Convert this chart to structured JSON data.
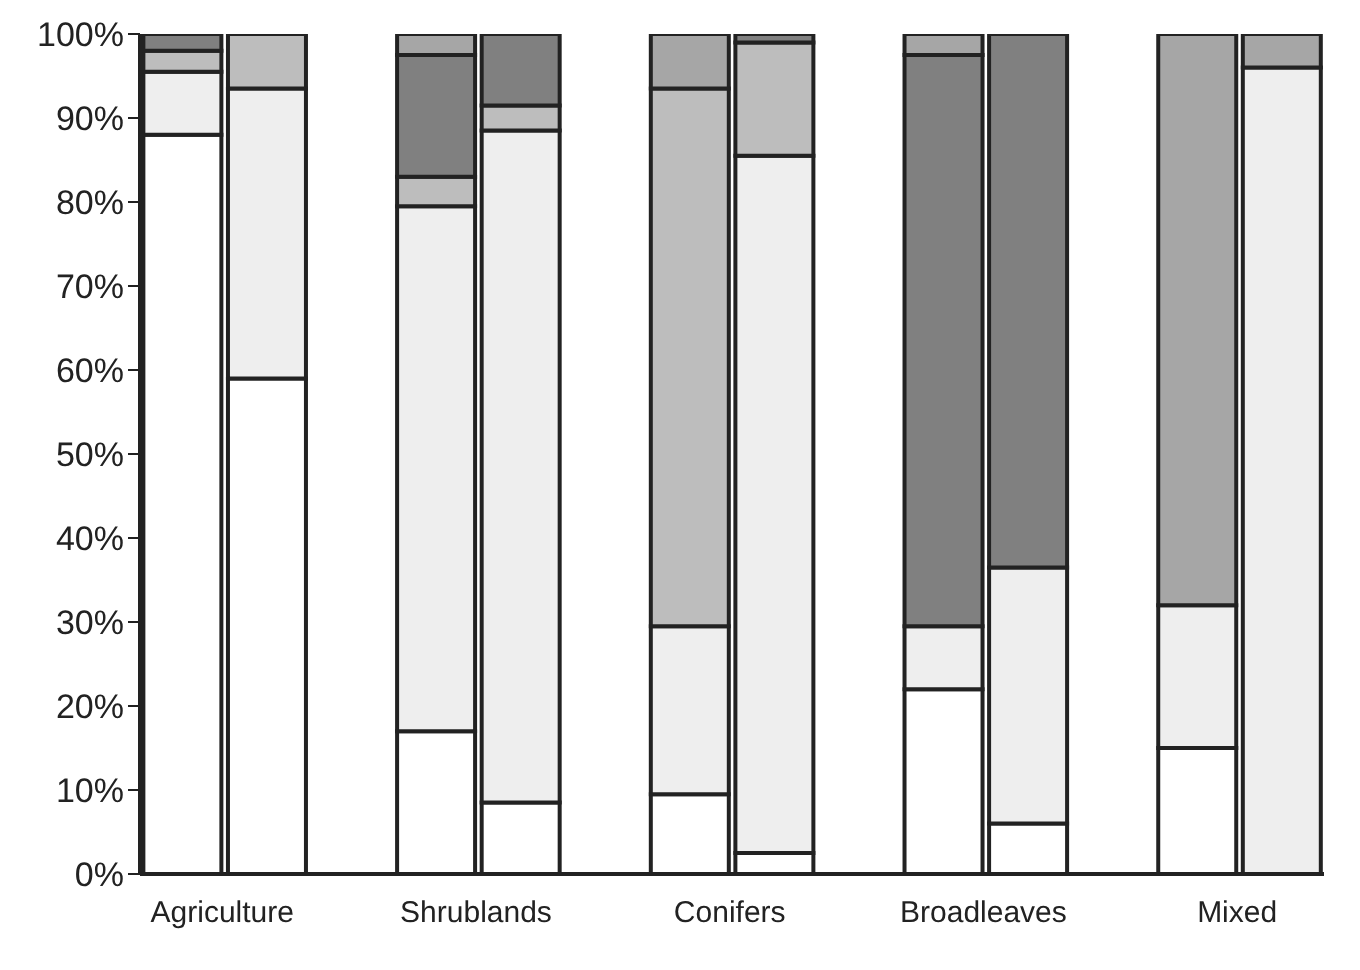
{
  "chart_data": {
    "type": "bar",
    "stacked": true,
    "categories": [
      "Agriculture",
      null,
      null,
      "Shrublands",
      null,
      null,
      "Conifers",
      null,
      null,
      "Broadleaves",
      null,
      null,
      "Mixed",
      null
    ],
    "series": [
      {
        "color": "#ffffff",
        "values": [
          88,
          59,
          null,
          17,
          8.5,
          null,
          9.5,
          2.5,
          null,
          22,
          6,
          null,
          15,
          0
        ]
      },
      {
        "color": "#eeeeee",
        "values": [
          7.5,
          34.5,
          null,
          62.5,
          80,
          null,
          20,
          83,
          null,
          7.5,
          30.5,
          null,
          17,
          96
        ]
      },
      {
        "color": "#bdbdbd",
        "values": [
          2.5,
          6.5,
          null,
          3.5,
          3,
          null,
          64,
          13.5,
          null,
          0,
          0,
          null,
          0,
          0
        ]
      },
      {
        "color": "#808080",
        "values": [
          2,
          0,
          null,
          14.5,
          8.5,
          null,
          0,
          1,
          null,
          68,
          63.5,
          null,
          0,
          0
        ]
      },
      {
        "color": "#a6a6a6",
        "values": [
          0,
          0,
          null,
          2.5,
          0,
          null,
          6.5,
          0,
          null,
          2.5,
          0,
          null,
          68,
          4
        ]
      }
    ],
    "ylim": [
      0,
      100
    ],
    "yticks": [
      {
        "value": 0,
        "label": "0%"
      },
      {
        "value": 10,
        "label": "10%"
      },
      {
        "value": 20,
        "label": "20%"
      },
      {
        "value": 30,
        "label": "30%"
      },
      {
        "value": 40,
        "label": "40%"
      },
      {
        "value": 50,
        "label": "50%"
      },
      {
        "value": 60,
        "label": "60%"
      },
      {
        "value": 70,
        "label": "70%"
      },
      {
        "value": 80,
        "label": "80%"
      },
      {
        "value": 90,
        "label": "90%"
      },
      {
        "value": 100,
        "label": "100%"
      }
    ],
    "grid": false,
    "legend": false
  }
}
